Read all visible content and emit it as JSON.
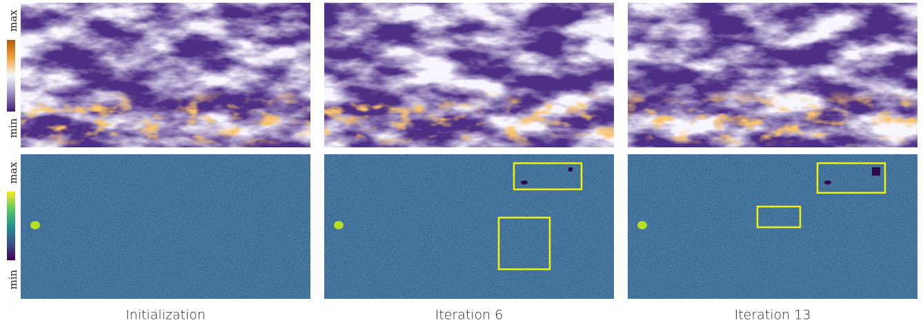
{
  "colorbars": [
    {
      "max": "max",
      "min": "min"
    },
    {
      "max": "max",
      "min": "min"
    }
  ],
  "columns": [
    {
      "label": "Initialization"
    },
    {
      "label": "Iteration 6"
    },
    {
      "label": "Iteration 13"
    }
  ]
}
